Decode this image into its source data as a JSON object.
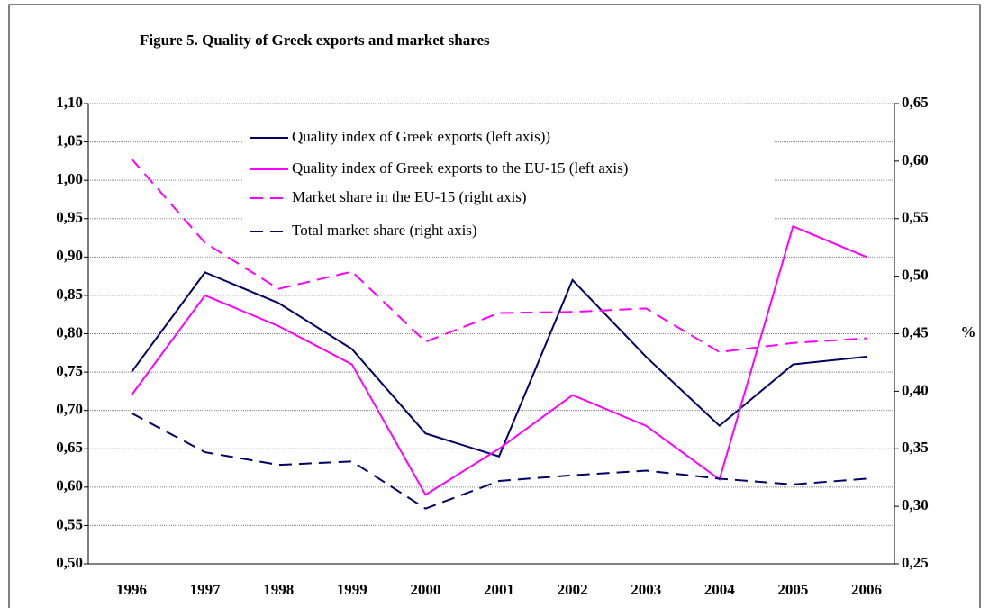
{
  "chart_data": {
    "type": "line",
    "title": "Figure 5. Quality of Greek exports and market shares",
    "y2_label": "%",
    "categories": [
      "1996",
      "1997",
      "1998",
      "1999",
      "2000",
      "2001",
      "2002",
      "2003",
      "2004",
      "2005",
      "2006"
    ],
    "series": [
      {
        "name": "Quality index of Greek exports (left axis))",
        "color": "#000066",
        "dash": false,
        "values": [
          0.75,
          0.88,
          0.84,
          0.78,
          0.67,
          0.64,
          0.87,
          0.77,
          0.68,
          0.76,
          0.77
        ]
      },
      {
        "name": "Quality index of Greek exports to the EU-15 (left axis)",
        "color": "#ff00ff",
        "dash": false,
        "values": [
          0.72,
          0.85,
          0.81,
          0.76,
          0.59,
          0.65,
          0.72,
          0.68,
          0.61,
          0.94,
          0.9
        ]
      },
      {
        "name": "Market share in the EU-15 (right axis)",
        "color": "#ff00ff",
        "dash": true,
        "axis": "y2",
        "values": [
          0.602,
          0.529,
          0.489,
          0.504,
          0.443,
          0.468,
          0.469,
          0.472,
          0.434,
          0.442,
          0.446
        ]
      },
      {
        "name": "Total market share (right axis)",
        "color": "#000066",
        "dash": true,
        "axis": "y2",
        "values": [
          0.381,
          0.347,
          0.336,
          0.339,
          0.298,
          0.322,
          0.327,
          0.331,
          0.324,
          0.319,
          0.324
        ]
      }
    ],
    "ylim": [
      0.5,
      1.1
    ],
    "yticks": [
      {
        "value": 0.5,
        "label": "0,50"
      },
      {
        "value": 0.55,
        "label": "0,55"
      },
      {
        "value": 0.6,
        "label": "0,60"
      },
      {
        "value": 0.65,
        "label": "0,65"
      },
      {
        "value": 0.7,
        "label": "0,70"
      },
      {
        "value": 0.75,
        "label": "0,75"
      },
      {
        "value": 0.8,
        "label": "0,80"
      },
      {
        "value": 0.85,
        "label": "0,85"
      },
      {
        "value": 0.9,
        "label": "0,90"
      },
      {
        "value": 0.95,
        "label": "0,95"
      },
      {
        "value": 1.0,
        "label": "1,00"
      },
      {
        "value": 1.05,
        "label": "1,05"
      },
      {
        "value": 1.1,
        "label": "1,10"
      }
    ],
    "y2lim": [
      0.25,
      0.65
    ],
    "y2ticks": [
      {
        "value": 0.25,
        "label": "0,25"
      },
      {
        "value": 0.3,
        "label": "0,30"
      },
      {
        "value": 0.35,
        "label": "0,35"
      },
      {
        "value": 0.4,
        "label": "0,40"
      },
      {
        "value": 0.45,
        "label": "0,45"
      },
      {
        "value": 0.5,
        "label": "0,50"
      },
      {
        "value": 0.55,
        "label": "0,55"
      },
      {
        "value": 0.6,
        "label": "0,60"
      },
      {
        "value": 0.65,
        "label": "0,65"
      }
    ],
    "grid": true
  }
}
